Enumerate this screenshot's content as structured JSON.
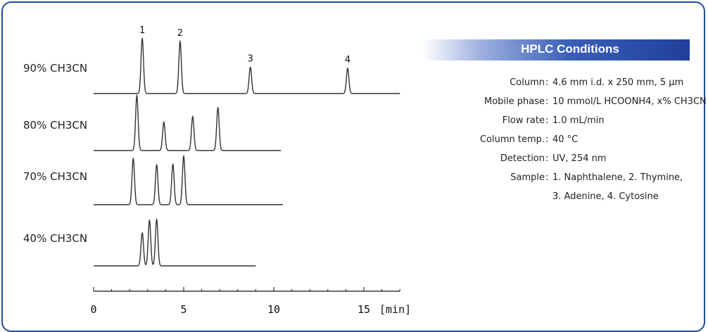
{
  "conditions": {
    "title": "HPLC Conditions",
    "rows": [
      {
        "key": "Column",
        "value": "4.6 mm i.d. x 250 mm, 5 μm"
      },
      {
        "key": "Mobile phase",
        "value": "10 mmol/L HCOONH4, x% CH3CN"
      },
      {
        "key": "Flow rate",
        "value": "1.0 mL/min"
      },
      {
        "key": "Column temp.",
        "value": "40 °C"
      },
      {
        "key": "Detection",
        "value": "UV, 254 nm"
      },
      {
        "key": "Sample",
        "value": "1. Naphthalene, 2. Thymine,"
      },
      {
        "key": "",
        "value": "3. Adenine, 4. Cytosine"
      }
    ]
  },
  "chart_data": {
    "type": "line",
    "title": "",
    "xlabel": "[min]",
    "ylabel": "",
    "xlim": [
      0,
      17
    ],
    "x_ticks": [
      0,
      5,
      10,
      15
    ],
    "peak_labels": [
      "1",
      "2",
      "3",
      "4"
    ],
    "series": [
      {
        "name": "90% CH3CN",
        "x_end": 17.0,
        "peaks": [
          {
            "t": 2.7,
            "h": 1.0
          },
          {
            "t": 4.8,
            "h": 0.95
          },
          {
            "t": 8.7,
            "h": 0.48
          },
          {
            "t": 14.1,
            "h": 0.46
          }
        ]
      },
      {
        "name": "80% CH3CN",
        "x_end": 10.4,
        "peaks": [
          {
            "t": 2.4,
            "h": 1.0
          },
          {
            "t": 3.9,
            "h": 0.52
          },
          {
            "t": 5.5,
            "h": 0.62
          },
          {
            "t": 6.9,
            "h": 0.78
          }
        ]
      },
      {
        "name": "70% CH3CN",
        "x_end": 10.5,
        "peaks": [
          {
            "t": 2.2,
            "h": 0.95
          },
          {
            "t": 3.5,
            "h": 0.82
          },
          {
            "t": 4.4,
            "h": 0.83
          },
          {
            "t": 5.0,
            "h": 1.0
          }
        ]
      },
      {
        "name": "40% CH3CN",
        "x_end": 9.0,
        "peaks": [
          {
            "t": 2.7,
            "h": 0.71
          },
          {
            "t": 3.1,
            "h": 0.98
          },
          {
            "t": 3.5,
            "h": 1.0
          }
        ]
      }
    ]
  }
}
